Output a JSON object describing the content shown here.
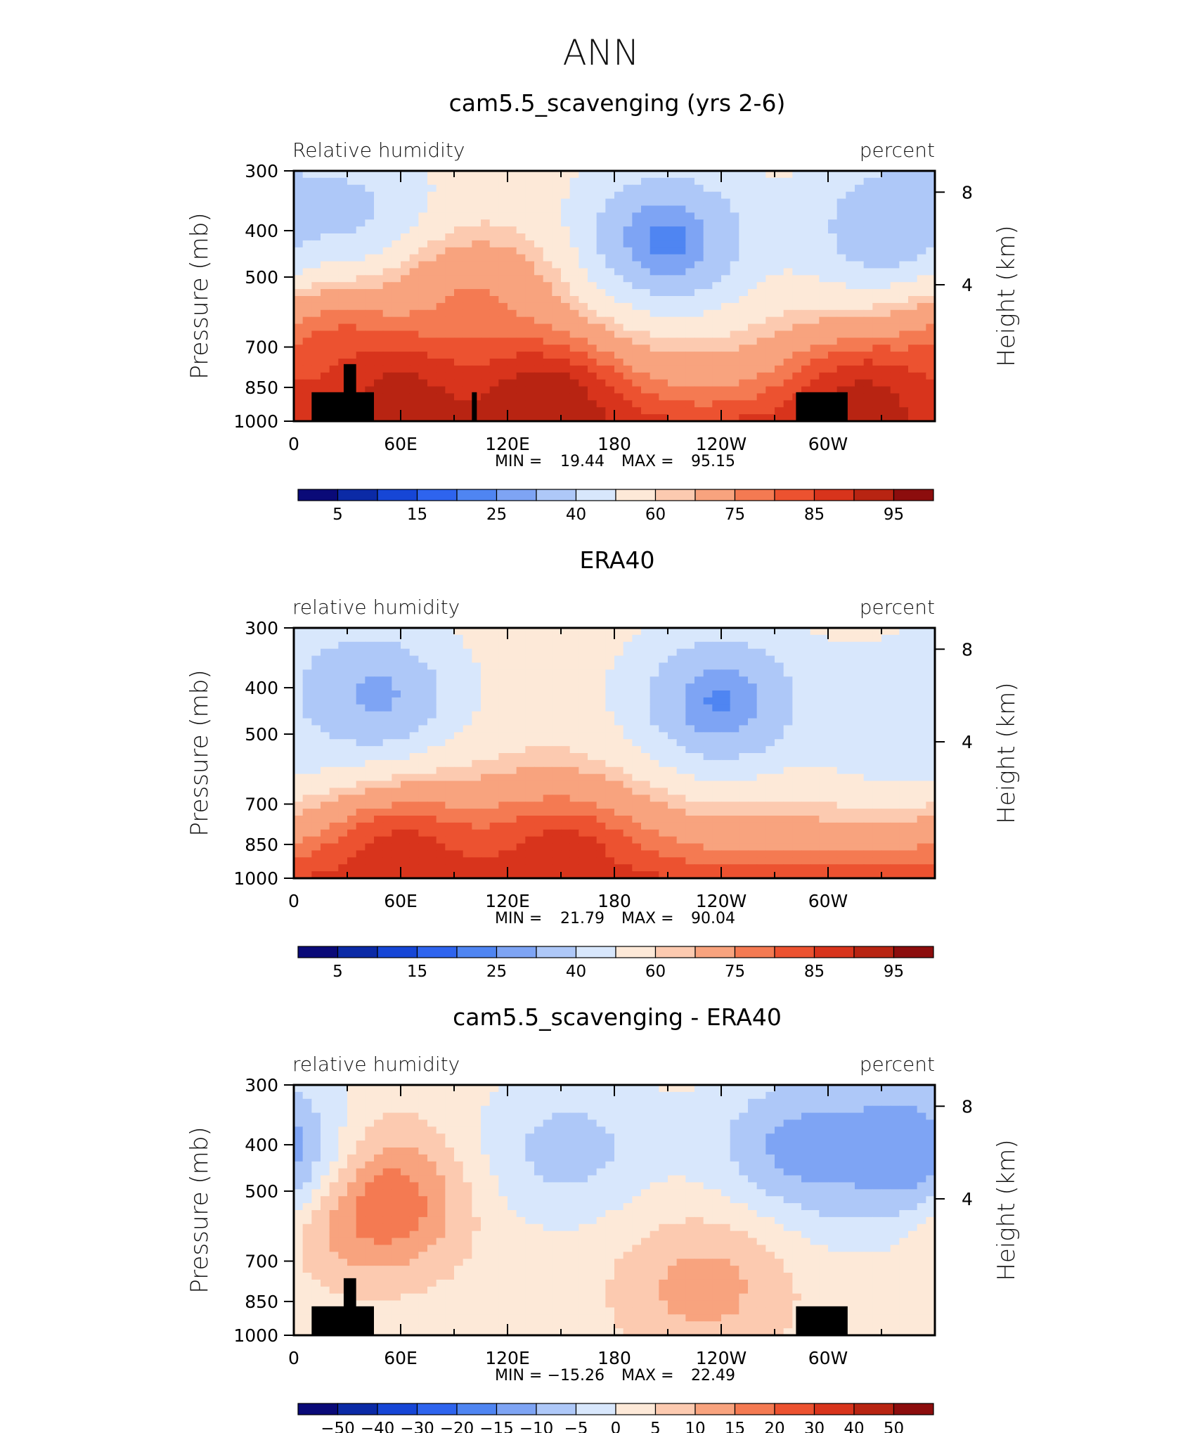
{
  "figure": {
    "title": "ANN"
  },
  "colors": {
    "abs_palette": [
      "#0a0a78",
      "#0b2aa6",
      "#1646d6",
      "#2e64ee",
      "#4f85f2",
      "#7ea4f4",
      "#aec8f8",
      "#d8e7fc",
      "#fde9d8",
      "#fccab0",
      "#f8a37e",
      "#f47a52",
      "#ec5230",
      "#d8341c",
      "#b82412",
      "#8c0d0d"
    ],
    "diff_palette": [
      "#0a0a78",
      "#0b2aa6",
      "#1646d6",
      "#2e64ee",
      "#4f85f2",
      "#7ea4f4",
      "#aec8f8",
      "#d8e7fc",
      "#fde9d8",
      "#fccab0",
      "#f8a37e",
      "#f47a52",
      "#ec5230",
      "#d8341c",
      "#b82412",
      "#8c0d0d"
    ]
  },
  "chart_data": [
    {
      "type": "heatmap",
      "title": "cam5.5_scavenging (yrs 2-6)",
      "left_label": "Relative humidity",
      "right_label": "percent",
      "ylabel": "Pressure (mb)",
      "ylabel_right": "Height (km)",
      "y_ticks": [
        "300",
        "400",
        "500",
        "700",
        "850",
        "1000"
      ],
      "y_ticks_right": [
        "8",
        "4"
      ],
      "x_ticks": [
        "0",
        "60E",
        "120E",
        "180",
        "120W",
        "60W"
      ],
      "stats": {
        "min_label": "MIN =",
        "min": "19.44",
        "max_label": "MAX =",
        "max": "95.15"
      },
      "colorbar_labels": [
        "5",
        "15",
        "25",
        "40",
        "60",
        "75",
        "85",
        "95"
      ],
      "contour_levels": [
        5,
        10,
        15,
        20,
        25,
        30,
        40,
        50,
        60,
        65,
        75,
        80,
        85,
        90,
        95
      ],
      "value_range": [
        19.44,
        95.15
      ],
      "features": [
        {
          "lon": 208,
          "p": 420,
          "value": 23
        },
        {
          "lon": 340,
          "p": 400,
          "value": 28
        },
        {
          "lon": 35,
          "p": 400,
          "value": 34
        },
        {
          "lon": 25,
          "p": 700,
          "value": 78
        },
        {
          "lon": 100,
          "p": 550,
          "value": 74
        },
        {
          "lon": 140,
          "p": 930,
          "value": 95
        },
        {
          "lon": 60,
          "p": 930,
          "value": 93
        },
        {
          "lon": 320,
          "p": 930,
          "value": 92
        }
      ],
      "has_topography": true
    },
    {
      "type": "heatmap",
      "title": "ERA40",
      "left_label": "relative humidity",
      "right_label": "percent",
      "ylabel": "Pressure (mb)",
      "ylabel_right": "Height (km)",
      "y_ticks": [
        "300",
        "400",
        "500",
        "700",
        "850",
        "1000"
      ],
      "y_ticks_right": [
        "8",
        "4"
      ],
      "x_ticks": [
        "0",
        "60E",
        "120E",
        "180",
        "120W",
        "60W"
      ],
      "stats": {
        "min_label": "MIN =",
        "min": "21.79",
        "max_label": "MAX =",
        "max": "90.04"
      },
      "colorbar_labels": [
        "5",
        "15",
        "25",
        "40",
        "60",
        "75",
        "85",
        "95"
      ],
      "contour_levels": [
        5,
        10,
        15,
        20,
        25,
        30,
        40,
        50,
        60,
        65,
        75,
        80,
        85,
        90,
        95
      ],
      "value_range": [
        21.79,
        90.04
      ],
      "features": [
        {
          "lon": 240,
          "p": 430,
          "value": 24
        },
        {
          "lon": 42,
          "p": 420,
          "value": 26
        },
        {
          "lon": 340,
          "p": 480,
          "value": 40
        },
        {
          "lon": 60,
          "p": 930,
          "value": 88
        },
        {
          "lon": 150,
          "p": 930,
          "value": 88
        }
      ],
      "has_topography": false
    },
    {
      "type": "heatmap",
      "title": "cam5.5_scavenging - ERA40",
      "left_label": "relative humidity",
      "right_label": "percent",
      "ylabel": "Pressure (mb)",
      "ylabel_right": "Height (km)",
      "y_ticks": [
        "300",
        "400",
        "500",
        "700",
        "850",
        "1000"
      ],
      "y_ticks_right": [
        "8",
        "4"
      ],
      "x_ticks": [
        "0",
        "60E",
        "120E",
        "180",
        "120W",
        "60W"
      ],
      "stats": {
        "min_label": "MIN =",
        "min": "−15.26",
        "max_label": "MAX =",
        "max": "22.49"
      },
      "colorbar_labels": [
        "−50",
        "−40",
        "−30",
        "−20",
        "−15",
        "−10",
        "−5",
        "0",
        "5",
        "10",
        "15",
        "20",
        "30",
        "40",
        "50"
      ],
      "contour_levels": [
        -50,
        -40,
        -30,
        -20,
        -15,
        -10,
        -5,
        0,
        5,
        10,
        15,
        20,
        30,
        40,
        50
      ],
      "value_range": [
        -15.26,
        22.49
      ],
      "features": [
        {
          "lon": 45,
          "p": 520,
          "value": 22
        },
        {
          "lon": 340,
          "p": 410,
          "value": -15
        },
        {
          "lon": 285,
          "p": 410,
          "value": -12
        },
        {
          "lon": 155,
          "p": 410,
          "value": -7
        },
        {
          "lon": 230,
          "p": 800,
          "value": 12
        }
      ],
      "has_topography": true
    }
  ]
}
